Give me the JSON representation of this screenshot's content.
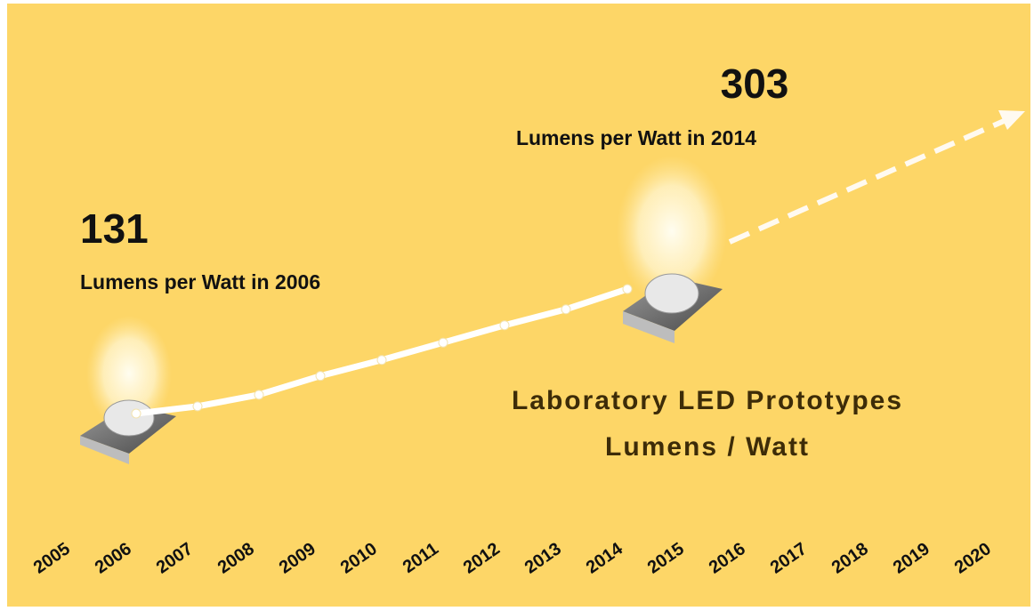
{
  "chart_data": {
    "type": "line",
    "title": "Laboratory LED Prototypes",
    "subtitle": "Lumens / Watt",
    "annotations": [
      {
        "text": "131",
        "note": "Lumens per Watt in 2006"
      },
      {
        "text": "303",
        "note": "Lumens per Watt in 2014"
      }
    ],
    "categories": [
      "2005",
      "2006",
      "2007",
      "2008",
      "2009",
      "2010",
      "2011",
      "2012",
      "2013",
      "2014",
      "2015",
      "2016",
      "2017",
      "2018",
      "2019",
      "2020"
    ],
    "series": [
      {
        "name": "Laboratory LED Prototypes",
        "color": "#ffffff",
        "values": [
          null,
          131,
          141,
          157,
          183,
          205,
          229,
          253,
          275,
          303,
          null,
          null,
          null,
          null,
          null,
          null
        ]
      }
    ]
  }
}
